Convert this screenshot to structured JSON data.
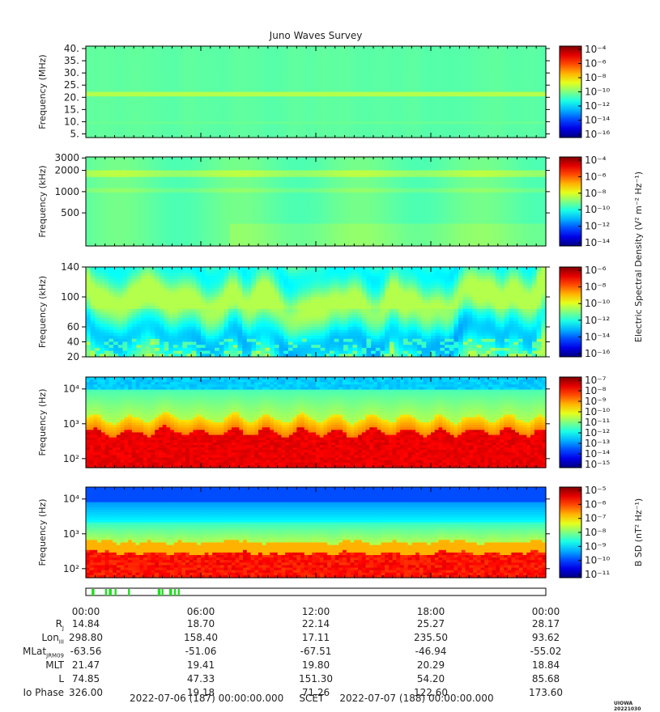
{
  "title": "Juno Waves Survey",
  "footer": {
    "start": "2022-07-06 (187) 00:00:00.000",
    "label": "SCET",
    "end": "2022-07-07 (188) 00:00:00.000"
  },
  "stamp": "UIOWA 20221030",
  "colorbars": {
    "shared_label": "Electric Spectral Density (V² m⁻² Hz⁻¹)",
    "bsd_label": "B SD (nT² Hz⁻¹)"
  },
  "chart_data": [
    {
      "type": "heatmap",
      "panel": "HFR high",
      "ylabel": "Frequency (MHz)",
      "ylim": [
        3.5,
        41
      ],
      "yticks": [
        "40.",
        "35.",
        "30.",
        "25.",
        "20.",
        "15.",
        "10.",
        "5."
      ],
      "ytick_values": [
        40,
        35,
        30,
        25,
        20,
        15,
        10,
        5
      ],
      "scale": "linear",
      "colorbar_ticks": [
        "10⁻⁴",
        "10⁻⁶",
        "10⁻⁸",
        "10⁻¹⁰",
        "10⁻¹²",
        "10⁻¹⁴",
        "10⁻¹⁶"
      ]
    },
    {
      "type": "heatmap",
      "panel": "HFR low",
      "ylabel": "Frequency (kHz)",
      "ylim": [
        170,
        3100
      ],
      "yticks": [
        "3000",
        "2000",
        "1000",
        "500"
      ],
      "ytick_values": [
        3000,
        2000,
        1000,
        500
      ],
      "scale": "log",
      "colorbar_ticks": [
        "10⁻⁴",
        "10⁻⁶",
        "10⁻⁸",
        "10⁻¹⁰",
        "10⁻¹²",
        "10⁻¹⁴"
      ]
    },
    {
      "type": "heatmap",
      "panel": "LFR high",
      "ylabel": "Frequency (kHz)",
      "ylim": [
        20,
        140
      ],
      "yticks": [
        "140",
        "100",
        "60",
        "40",
        "20"
      ],
      "ytick_values": [
        140,
        100,
        60,
        40,
        20
      ],
      "scale": "linear",
      "colorbar_ticks": [
        "10⁻⁶",
        "10⁻⁸",
        "10⁻¹⁰",
        "10⁻¹²",
        "10⁻¹⁴",
        "10⁻¹⁶"
      ]
    },
    {
      "type": "heatmap",
      "panel": "LFR low E",
      "ylabel": "Frequency (Hz)",
      "ylim": [
        55,
        22000
      ],
      "yticks": [
        "10⁴",
        "10³",
        "10²"
      ],
      "ytick_values": [
        10000,
        1000,
        100
      ],
      "scale": "log",
      "colorbar_ticks": [
        "10⁻⁷",
        "10⁻⁸",
        "10⁻⁹",
        "10⁻¹⁰",
        "10⁻¹¹",
        "10⁻¹²",
        "10⁻¹³",
        "10⁻¹⁴",
        "10⁻¹⁵"
      ]
    },
    {
      "type": "heatmap",
      "panel": "LFR low B",
      "ylabel": "Frequency (Hz)",
      "ylim": [
        55,
        22000
      ],
      "yticks": [
        "10⁴",
        "10³",
        "10²"
      ],
      "ytick_values": [
        10000,
        1000,
        100
      ],
      "scale": "log",
      "colorbar_ticks": [
        "10⁻⁵",
        "10⁻⁶",
        "10⁻⁷",
        "10⁻⁸",
        "10⁻⁹",
        "10⁻¹⁰",
        "10⁻¹¹"
      ]
    }
  ],
  "time_axis": {
    "ticks": [
      "00:00",
      "06:00",
      "12:00",
      "18:00",
      "00:00"
    ],
    "tick_hours": [
      0,
      6,
      12,
      18,
      24
    ]
  },
  "mode_bar": {
    "burst_intervals_hours": [
      [
        0.3,
        0.45
      ],
      [
        1.0,
        1.1
      ],
      [
        1.2,
        1.35
      ],
      [
        1.5,
        1.6
      ],
      [
        2.2,
        2.3
      ],
      [
        3.75,
        3.9
      ],
      [
        3.95,
        4.05
      ],
      [
        4.35,
        4.5
      ],
      [
        4.6,
        4.7
      ],
      [
        4.8,
        4.9
      ]
    ]
  },
  "ephemeris": [
    {
      "label": "R",
      "sub": "J",
      "values": [
        "14.84",
        "18.70",
        "22.14",
        "25.27",
        "28.17"
      ]
    },
    {
      "label": "Lon",
      "sub": "III",
      "values": [
        "298.80",
        "158.40",
        "17.11",
        "235.50",
        "93.62"
      ]
    },
    {
      "label": "MLat",
      "sub": "JRM09",
      "values": [
        "-63.56",
        "-51.06",
        "-67.51",
        "-46.94",
        "-55.02"
      ]
    },
    {
      "label": "MLT",
      "sub": "",
      "values": [
        "21.47",
        "19.41",
        "19.80",
        "20.29",
        "18.84"
      ]
    },
    {
      "label": "L",
      "sub": "",
      "values": [
        "74.85",
        "47.33",
        "151.30",
        "54.20",
        "85.68"
      ]
    },
    {
      "label": "Io Phase",
      "sub": "",
      "values": [
        "326.00",
        "19.18",
        "71.26",
        "122.60",
        "173.60"
      ]
    }
  ]
}
